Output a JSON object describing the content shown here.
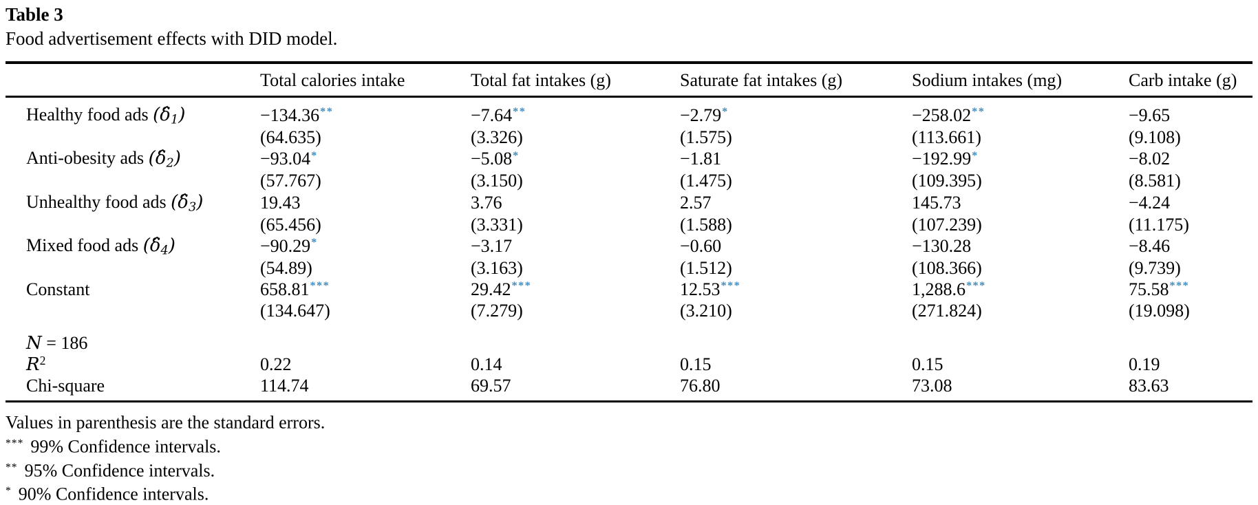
{
  "title": "Table 3",
  "caption": "Food advertisement effects with DID model.",
  "colors": {
    "star": "#3d8abe",
    "text": "#000000",
    "rule": "#000000",
    "background": "#ffffff"
  },
  "table": {
    "columns": [
      "Total calories intake",
      "Total fat intakes (g)",
      "Saturate fat intakes (g)",
      "Sodium intakes (mg)",
      "Carb intake (g)"
    ],
    "rows": [
      {
        "label": "Healthy food ads",
        "symbol": "δ̂",
        "sub": "1",
        "coef": [
          {
            "v": "−134.36",
            "stars": "**"
          },
          {
            "v": "−7.64",
            "stars": "**"
          },
          {
            "v": "−2.79",
            "stars": "*"
          },
          {
            "v": "−258.02",
            "stars": "**"
          },
          {
            "v": "−9.65",
            "stars": ""
          }
        ],
        "se": [
          "(64.635)",
          "(3.326)",
          "(1.575)",
          "(113.661)",
          "(9.108)"
        ]
      },
      {
        "label": "Anti-obesity ads",
        "symbol": "δ̂",
        "sub": "2",
        "coef": [
          {
            "v": "−93.04",
            "stars": "*"
          },
          {
            "v": "−5.08",
            "stars": "*"
          },
          {
            "v": "−1.81",
            "stars": ""
          },
          {
            "v": "−192.99",
            "stars": "*"
          },
          {
            "v": "−8.02",
            "stars": ""
          }
        ],
        "se": [
          "(57.767)",
          "(3.150)",
          "(1.475)",
          "(109.395)",
          "(8.581)"
        ]
      },
      {
        "label": "Unhealthy food ads",
        "symbol": "δ̂",
        "sub": "3",
        "coef": [
          {
            "v": "19.43",
            "stars": ""
          },
          {
            "v": "3.76",
            "stars": ""
          },
          {
            "v": "2.57",
            "stars": ""
          },
          {
            "v": "145.73",
            "stars": ""
          },
          {
            "v": "−4.24",
            "stars": ""
          }
        ],
        "se": [
          "(65.456)",
          "(3.331)",
          "(1.588)",
          "(107.239)",
          "(11.175)"
        ]
      },
      {
        "label": "Mixed food ads",
        "symbol": "δ̂",
        "sub": "4",
        "coef": [
          {
            "v": "−90.29",
            "stars": "*"
          },
          {
            "v": "−3.17",
            "stars": ""
          },
          {
            "v": "−0.60",
            "stars": ""
          },
          {
            "v": "−130.28",
            "stars": ""
          },
          {
            "v": "−8.46",
            "stars": ""
          }
        ],
        "se": [
          "(54.89)",
          "(3.163)",
          "(1.512)",
          "(108.366)",
          "(9.739)"
        ]
      },
      {
        "label": "Constant",
        "symbol": null,
        "sub": null,
        "coef": [
          {
            "v": "658.81",
            "stars": "***"
          },
          {
            "v": "29.42",
            "stars": "***"
          },
          {
            "v": "12.53",
            "stars": "***"
          },
          {
            "v": "1,288.6",
            "stars": "***"
          },
          {
            "v": "75.58",
            "stars": "***"
          }
        ],
        "se": [
          "(134.647)",
          "(7.279)",
          "(3.210)",
          "(271.824)",
          "(19.098)"
        ]
      }
    ],
    "stats": [
      {
        "kind": "n",
        "label_italic": "N",
        "label_rest": " = 186",
        "cells": [
          "",
          "",
          "",
          "",
          ""
        ]
      },
      {
        "kind": "r2",
        "label_italic": "R",
        "label_sup": "2",
        "cells": [
          "0.22",
          "0.14",
          "0.15",
          "0.15",
          "0.19"
        ]
      },
      {
        "kind": "plain",
        "label": "Chi-square",
        "cells": [
          "114.74",
          "69.57",
          "76.80",
          "73.08",
          "83.63"
        ]
      }
    ]
  },
  "footnotes": [
    {
      "stars": "",
      "text": "Values in parenthesis are the standard errors."
    },
    {
      "stars": "***",
      "text": "99% Confidence intervals."
    },
    {
      "stars": "**",
      "text": "95% Confidence intervals."
    },
    {
      "stars": "*",
      "text": "90% Confidence intervals."
    }
  ]
}
